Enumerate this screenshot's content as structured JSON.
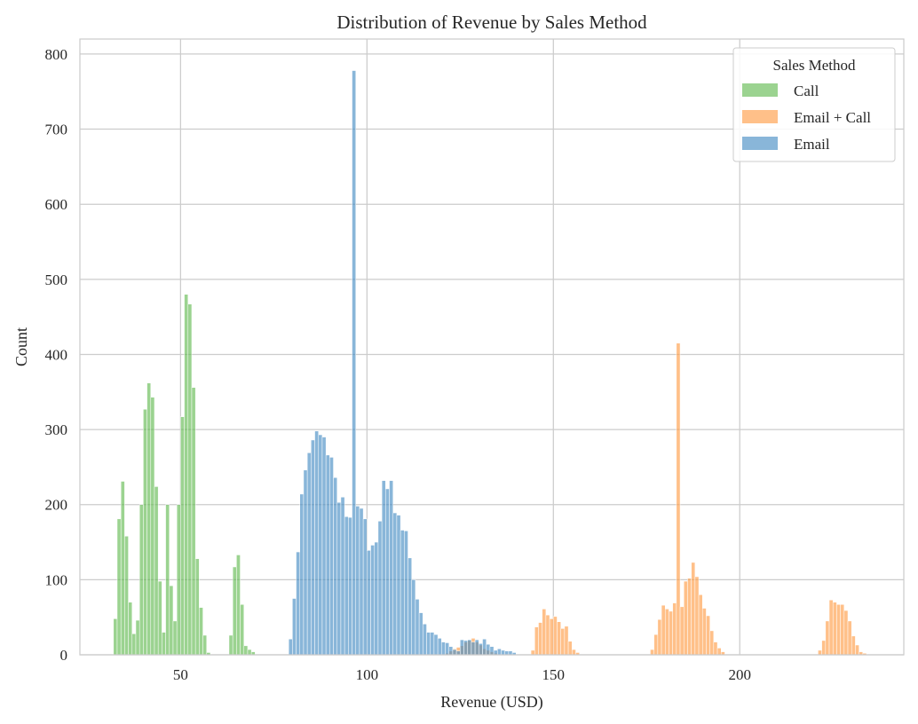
{
  "chart_data": {
    "type": "histogram",
    "title": "Distribution of Revenue by Sales Method",
    "xlabel": "Revenue (USD)",
    "ylabel": "Count",
    "xlim": [
      23,
      244
    ],
    "ylim": [
      0,
      820
    ],
    "xticks": [
      50,
      100,
      150,
      200
    ],
    "yticks": [
      0,
      100,
      200,
      300,
      400,
      500,
      600,
      700,
      800
    ],
    "grid": true,
    "bin_width": 1.0,
    "legend": {
      "title": "Sales Method",
      "position": "top-right",
      "entries": [
        "Call",
        "Email + Call",
        "Email"
      ]
    },
    "series": [
      {
        "name": "Call",
        "color": "#66bb55",
        "bins": [
          [
            32.5,
            48
          ],
          [
            33.5,
            181
          ],
          [
            34.5,
            231
          ],
          [
            35.5,
            158
          ],
          [
            36.5,
            70
          ],
          [
            37.5,
            28
          ],
          [
            38.5,
            46
          ],
          [
            39.5,
            200
          ],
          [
            40.5,
            327
          ],
          [
            41.5,
            362
          ],
          [
            42.5,
            343
          ],
          [
            43.5,
            224
          ],
          [
            44.5,
            98
          ],
          [
            45.5,
            30
          ],
          [
            46.5,
            200
          ],
          [
            47.5,
            92
          ],
          [
            48.5,
            45
          ],
          [
            49.5,
            200
          ],
          [
            50.5,
            317
          ],
          [
            51.5,
            480
          ],
          [
            52.5,
            467
          ],
          [
            53.5,
            356
          ],
          [
            54.5,
            128
          ],
          [
            55.5,
            63
          ],
          [
            56.5,
            26
          ],
          [
            57.5,
            3
          ],
          [
            63.5,
            26
          ],
          [
            64.5,
            117
          ],
          [
            65.5,
            133
          ],
          [
            66.5,
            67
          ],
          [
            67.5,
            12
          ],
          [
            68.5,
            7
          ],
          [
            69.5,
            4
          ]
        ]
      },
      {
        "name": "Email + Call",
        "color": "#ff9e4a",
        "bins": [
          [
            121.5,
            2
          ],
          [
            122.5,
            5
          ],
          [
            123.5,
            8
          ],
          [
            124.5,
            10
          ],
          [
            125.5,
            12
          ],
          [
            126.5,
            17
          ],
          [
            127.5,
            19
          ],
          [
            128.5,
            22
          ],
          [
            129.5,
            17
          ],
          [
            130.5,
            13
          ],
          [
            131.5,
            8
          ],
          [
            132.5,
            6
          ],
          [
            133.5,
            4
          ],
          [
            134.5,
            2
          ],
          [
            144.5,
            6
          ],
          [
            145.5,
            37
          ],
          [
            146.5,
            43
          ],
          [
            147.5,
            61
          ],
          [
            148.5,
            53
          ],
          [
            149.5,
            48
          ],
          [
            150.5,
            51
          ],
          [
            151.5,
            44
          ],
          [
            152.5,
            35
          ],
          [
            153.5,
            38
          ],
          [
            154.5,
            18
          ],
          [
            155.5,
            7
          ],
          [
            156.5,
            3
          ],
          [
            176.5,
            7
          ],
          [
            177.5,
            27
          ],
          [
            178.5,
            47
          ],
          [
            179.5,
            66
          ],
          [
            180.5,
            61
          ],
          [
            181.5,
            58
          ],
          [
            182.5,
            69
          ],
          [
            183.5,
            415
          ],
          [
            184.5,
            64
          ],
          [
            185.5,
            98
          ],
          [
            186.5,
            102
          ],
          [
            187.5,
            123
          ],
          [
            188.5,
            104
          ],
          [
            189.5,
            80
          ],
          [
            190.5,
            62
          ],
          [
            191.5,
            52
          ],
          [
            192.5,
            32
          ],
          [
            193.5,
            17
          ],
          [
            194.5,
            9
          ],
          [
            195.5,
            4
          ],
          [
            221.5,
            6
          ],
          [
            222.5,
            19
          ],
          [
            223.5,
            45
          ],
          [
            224.5,
            73
          ],
          [
            225.5,
            70
          ],
          [
            226.5,
            67
          ],
          [
            227.5,
            67
          ],
          [
            228.5,
            59
          ],
          [
            229.5,
            45
          ],
          [
            230.5,
            25
          ],
          [
            231.5,
            13
          ],
          [
            232.5,
            4
          ],
          [
            233.5,
            2
          ]
        ]
      },
      {
        "name": "Email",
        "color": "#4a8fc4",
        "bins": [
          [
            79.5,
            21
          ],
          [
            80.5,
            75
          ],
          [
            81.5,
            137
          ],
          [
            82.5,
            214
          ],
          [
            83.5,
            246
          ],
          [
            84.5,
            269
          ],
          [
            85.5,
            286
          ],
          [
            86.5,
            298
          ],
          [
            87.5,
            293
          ],
          [
            88.5,
            290
          ],
          [
            89.5,
            266
          ],
          [
            90.5,
            263
          ],
          [
            91.5,
            236
          ],
          [
            92.5,
            203
          ],
          [
            93.5,
            210
          ],
          [
            94.5,
            184
          ],
          [
            95.5,
            183
          ],
          [
            96.5,
            778
          ],
          [
            97.5,
            198
          ],
          [
            98.5,
            195
          ],
          [
            99.5,
            181
          ],
          [
            100.5,
            139
          ],
          [
            101.5,
            146
          ],
          [
            102.5,
            150
          ],
          [
            103.5,
            178
          ],
          [
            104.5,
            232
          ],
          [
            105.5,
            221
          ],
          [
            106.5,
            232
          ],
          [
            107.5,
            189
          ],
          [
            108.5,
            186
          ],
          [
            109.5,
            166
          ],
          [
            110.5,
            165
          ],
          [
            111.5,
            129
          ],
          [
            112.5,
            100
          ],
          [
            113.5,
            74
          ],
          [
            114.5,
            56
          ],
          [
            115.5,
            41
          ],
          [
            116.5,
            30
          ],
          [
            117.5,
            30
          ],
          [
            118.5,
            27
          ],
          [
            119.5,
            22
          ],
          [
            120.5,
            17
          ],
          [
            121.5,
            16
          ],
          [
            122.5,
            11
          ],
          [
            123.5,
            7
          ],
          [
            124.5,
            5
          ],
          [
            125.5,
            20
          ],
          [
            126.5,
            19
          ],
          [
            127.5,
            20
          ],
          [
            128.5,
            17
          ],
          [
            129.5,
            20
          ],
          [
            130.5,
            15
          ],
          [
            131.5,
            21
          ],
          [
            132.5,
            14
          ],
          [
            133.5,
            11
          ],
          [
            134.5,
            6
          ],
          [
            135.5,
            8
          ],
          [
            136.5,
            6
          ],
          [
            137.5,
            5
          ],
          [
            138.5,
            5
          ],
          [
            139.5,
            3
          ]
        ]
      }
    ]
  }
}
